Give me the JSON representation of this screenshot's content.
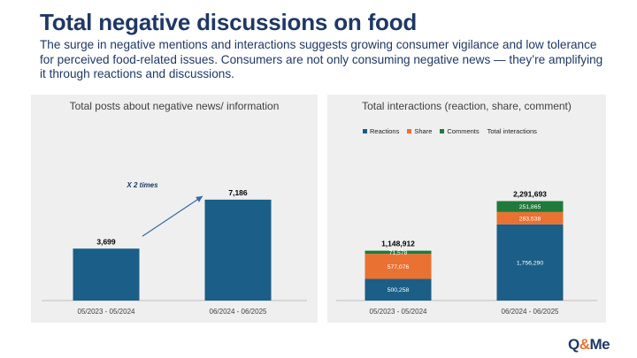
{
  "header": {
    "title": "Total negative discussions on food",
    "subtitle": "The surge in negative mentions and interactions suggests growing consumer vigilance and low tolerance for perceived food-related issues. Consumers are not only consuming negative news — they’re amplifying it through reactions and discussions."
  },
  "logo": {
    "q": "Q",
    "amp": "&",
    "me": "Me"
  },
  "colors": {
    "reactions": "#1b5e87",
    "share": "#e97132",
    "comments": "#1e7b3a",
    "bar": "#1b5e87",
    "arrow": "#2e6ca4"
  },
  "chart_data": [
    {
      "type": "bar",
      "title": "Total posts about negative news/ information",
      "categories": [
        "05/2023 - 05/2024",
        "06/2024 - 06/2025"
      ],
      "values": [
        3699,
        7186
      ],
      "value_labels": [
        "3,699",
        "7,186"
      ],
      "annotation": "X 2 times",
      "ylim": [
        0,
        8500
      ]
    },
    {
      "type": "bar",
      "stacked": true,
      "title": "Total interactions (reaction, share, comment)",
      "categories": [
        "05/2023 - 05/2024",
        "06/2024 - 06/2025"
      ],
      "series": [
        {
          "name": "Reactions",
          "values": [
            500258,
            1756290
          ],
          "labels": [
            "500,258",
            "1,756,290"
          ]
        },
        {
          "name": "Share",
          "values": [
            577076,
            283538
          ],
          "labels": [
            "577,076",
            "283,538"
          ]
        },
        {
          "name": "Comments",
          "values": [
            71578,
            251865
          ],
          "labels": [
            "71,578",
            "251,865"
          ]
        }
      ],
      "totals_name": "Total interactions",
      "totals": [
        1148912,
        2291693
      ],
      "total_labels": [
        "1,148,912",
        "2,291,693"
      ],
      "ylim": [
        0,
        2750000
      ]
    }
  ]
}
